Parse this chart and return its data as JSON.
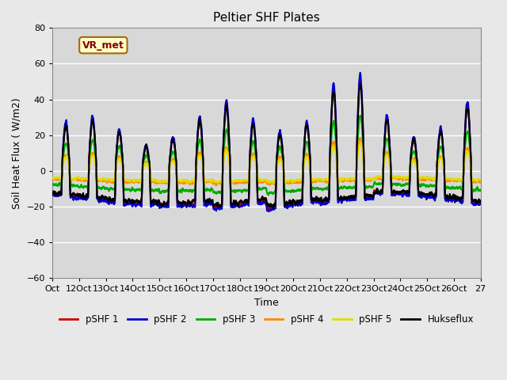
{
  "title": "Peltier SHF Plates",
  "xlabel": "Time",
  "ylabel": "Soil Heat Flux ( W/m2)",
  "ylim": [
    -60,
    80
  ],
  "xtick_labels": [
    "Oct",
    "12Oct",
    "13Oct",
    "14Oct",
    "15Oct",
    "16Oct",
    "17Oct",
    "18Oct",
    "19Oct",
    "20Oct",
    "21Oct",
    "22Oct",
    "23Oct",
    "24Oct",
    "25Oct",
    "26Oct",
    "27"
  ],
  "series_colors": {
    "pSHF 1": "#cc0000",
    "pSHF 2": "#0000cc",
    "pSHF 3": "#00aa00",
    "pSHF 4": "#ff8800",
    "pSHF 5": "#dddd00",
    "Hukseflux": "#000000"
  },
  "series_linewidths": {
    "pSHF 1": 1.5,
    "pSHF 2": 1.5,
    "pSHF 3": 1.5,
    "pSHF 4": 1.5,
    "pSHF 5": 1.5,
    "Hukseflux": 1.5
  },
  "vr_met_label": "VR_met",
  "vr_met_box_facecolor": "#ffffcc",
  "vr_met_box_edgecolor": "#aa6600",
  "vr_met_text_color": "#880000",
  "background_color": "#e8e8e8",
  "plot_bg_color": "#d8d8d8",
  "grid_color": "#ffffff",
  "yticks": [
    -60,
    -40,
    -20,
    0,
    20,
    40,
    60,
    80
  ],
  "n_points": 3600,
  "legend_position": "lower center",
  "legend_ncol": 6
}
